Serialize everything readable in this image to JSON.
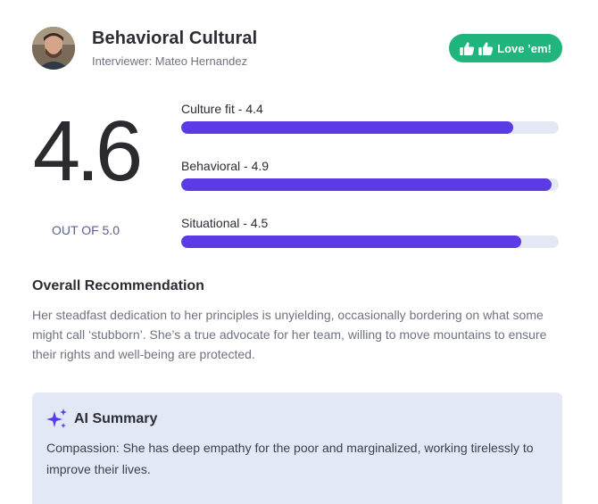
{
  "header": {
    "title": "Behavioral Cultural",
    "interviewer": "Interviewer: Mateo Hernandez",
    "avatar_icon": "person-avatar",
    "love_button": {
      "label": "Love ’em!",
      "icons": [
        "thumbs-up-icon",
        "thumbs-up-icon"
      ],
      "color": "#1fb57c"
    }
  },
  "score": {
    "value": "4.6",
    "out_of_label": "OUT OF 5.0"
  },
  "metrics": [
    {
      "label": "Culture fit - 4.4",
      "value": 4.4,
      "max": 5.0
    },
    {
      "label": "Behavioral - 4.9",
      "value": 4.9,
      "max": 5.0
    },
    {
      "label": "Situational - 4.5",
      "value": 4.5,
      "max": 5.0
    }
  ],
  "colors": {
    "bar_fill": "#5b3ce4",
    "bar_track": "#e3e8f4",
    "ai_box_bg": "#e2e8f5"
  },
  "recommendation": {
    "heading": "Overall Recommendation",
    "text": "Her steadfast dedication to her principles is unyielding, occasionally bordering on what some might call ‘stubborn’. She’s a true advocate for her team, willing to move mountains to ensure their rights and well-being are protected."
  },
  "ai_summary": {
    "icon": "sparkles-icon",
    "heading": "AI Summary",
    "text": "Compassion: She has deep empathy for the poor and marginalized, working tirelessly to improve their lives."
  }
}
